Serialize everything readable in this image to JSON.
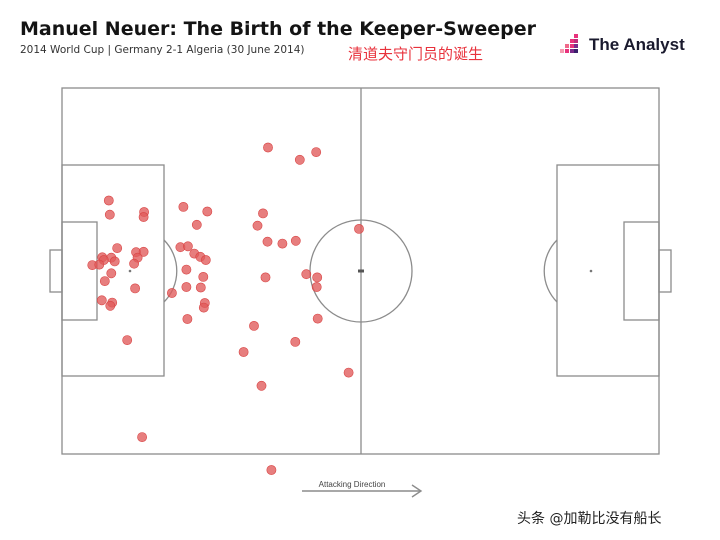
{
  "header": {
    "title": "Manuel Neuer: The Birth of the Keeper-Sweeper",
    "subtitle": "2014 World Cup | Germany 2-1 Algeria (30 June 2014)",
    "cn_title": "清道夫守门员的诞生"
  },
  "logo": {
    "text": "The Analyst",
    "icon": "analyst-bars-logo"
  },
  "watermark": "头条 @加勒比没有船长",
  "colors": {
    "dot": "#e05a5a",
    "dot_stroke": "#d94545",
    "line": "#8c8c8c",
    "accent": "#e8323c"
  },
  "chart_data": {
    "type": "scatter",
    "units": "yards (pitch 120 x 80)",
    "xlim": [
      0,
      120
    ],
    "ylim": [
      0,
      80
    ],
    "direction_label": "Attacking Direction",
    "points": [
      [
        41.4,
        67.0
      ],
      [
        51.1,
        66.0
      ],
      [
        47.8,
        64.3
      ],
      [
        9.4,
        55.4
      ],
      [
        9.6,
        52.3
      ],
      [
        16.5,
        52.9
      ],
      [
        16.4,
        51.8
      ],
      [
        24.4,
        54.0
      ],
      [
        29.2,
        53.0
      ],
      [
        27.1,
        50.1
      ],
      [
        40.4,
        52.6
      ],
      [
        39.3,
        49.9
      ],
      [
        41.3,
        46.4
      ],
      [
        44.3,
        46.0
      ],
      [
        47.0,
        46.6
      ],
      [
        59.7,
        49.2
      ],
      [
        11.1,
        45.0
      ],
      [
        14.9,
        44.1
      ],
      [
        16.4,
        44.2
      ],
      [
        15.2,
        42.9
      ],
      [
        8.1,
        43.0
      ],
      [
        9.9,
        42.9
      ],
      [
        8.4,
        42.4
      ],
      [
        10.6,
        42.1
      ],
      [
        6.1,
        41.3
      ],
      [
        7.5,
        41.4
      ],
      [
        14.5,
        41.6
      ],
      [
        23.8,
        45.2
      ],
      [
        25.3,
        45.4
      ],
      [
        26.6,
        43.8
      ],
      [
        27.8,
        43.1
      ],
      [
        28.9,
        42.4
      ],
      [
        25.0,
        40.3
      ],
      [
        28.4,
        38.7
      ],
      [
        9.9,
        39.5
      ],
      [
        8.6,
        37.8
      ],
      [
        14.7,
        36.2
      ],
      [
        25.0,
        36.5
      ],
      [
        27.9,
        36.4
      ],
      [
        22.1,
        35.2
      ],
      [
        49.1,
        39.3
      ],
      [
        40.9,
        38.6
      ],
      [
        51.3,
        38.6
      ],
      [
        51.2,
        36.5
      ],
      [
        8.0,
        33.6
      ],
      [
        10.1,
        33.1
      ],
      [
        9.7,
        32.4
      ],
      [
        28.7,
        33.0
      ],
      [
        28.5,
        32.0
      ],
      [
        25.2,
        29.5
      ],
      [
        51.4,
        29.6
      ],
      [
        38.6,
        28.0
      ],
      [
        13.1,
        24.9
      ],
      [
        46.9,
        24.5
      ],
      [
        36.5,
        22.3
      ],
      [
        57.6,
        17.8
      ],
      [
        40.1,
        14.9
      ],
      [
        16.1,
        3.7
      ],
      [
        42.1,
        -3.5
      ]
    ]
  }
}
